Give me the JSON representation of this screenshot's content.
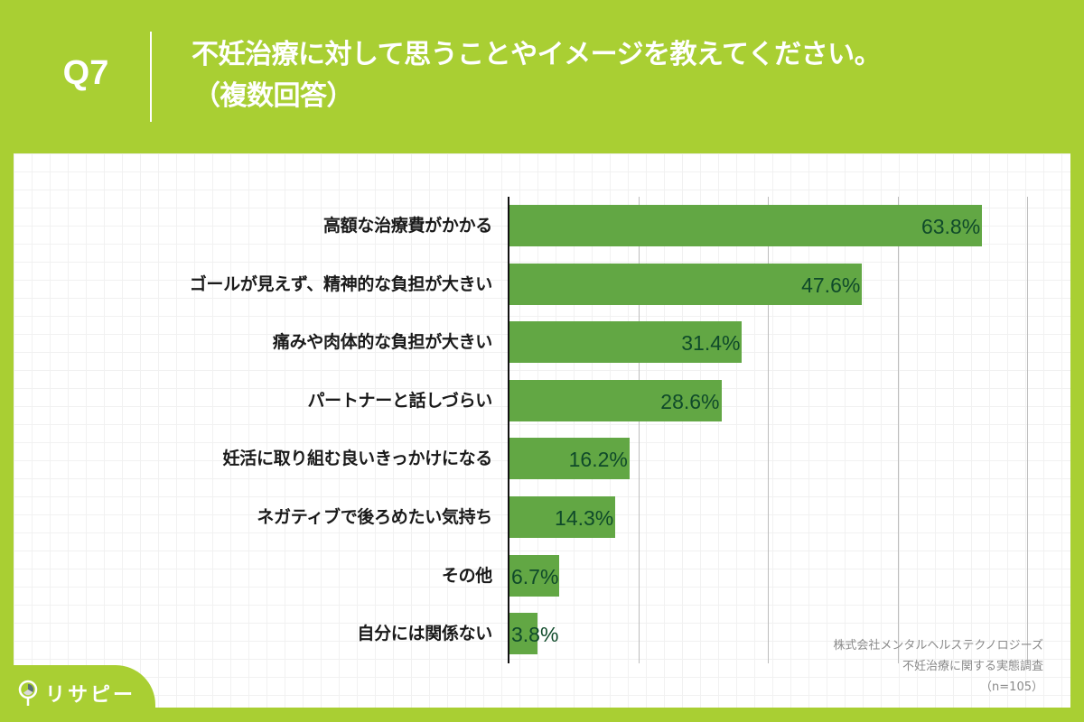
{
  "header": {
    "question_number": "Q7",
    "title_line1": "不妊治療に対して思うことやイメージを教えてください。",
    "title_line2": "（複数回答）"
  },
  "source": {
    "company": "株式会社メンタルヘルステクノロジーズ",
    "survey": "不妊治療に関する実態調査",
    "sample": "（n=105）"
  },
  "logo": {
    "text": "リサピー"
  },
  "colors": {
    "background": "#A9CF33",
    "bar": "#62A744",
    "value_label": "#0F4A2A",
    "panel": "#FFFFFF"
  },
  "chart_data": {
    "type": "bar",
    "orientation": "horizontal",
    "title": "不妊治療に対して思うことやイメージを教えてください。（複数回答）",
    "xlabel": "",
    "ylabel": "",
    "xlim": [
      0,
      70
    ],
    "gridlines": [
      17.5,
      35,
      52.5,
      70
    ],
    "grid": true,
    "unit": "%",
    "categories": [
      "高額な治療費がかかる",
      "ゴールが見えず、精神的な負担が大きい",
      "痛みや肉体的な負担が大きい",
      "パートナーと話しづらい",
      "妊活に取り組む良いきっかけになる",
      "ネガティブで後ろめたい気持ち",
      "その他",
      "自分には関係ない"
    ],
    "values": [
      63.8,
      47.6,
      31.4,
      28.6,
      16.2,
      14.3,
      6.7,
      3.8
    ],
    "value_labels": [
      "63.8%",
      "47.6%",
      "31.4%",
      "28.6%",
      "16.2%",
      "14.3%",
      "6.7%",
      "3.8%"
    ],
    "n": 105
  }
}
